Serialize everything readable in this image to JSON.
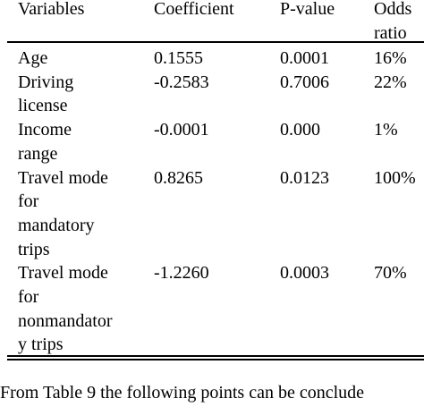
{
  "table": {
    "header": [
      [
        "Variables"
      ],
      [
        "Coefficient"
      ],
      [
        "P-value"
      ],
      [
        "Odds",
        "ratio"
      ]
    ],
    "rows": [
      [
        [
          "Age"
        ],
        "0.1555",
        "0.0001",
        "16%"
      ],
      [
        [
          "Driving",
          "license"
        ],
        "-0.2583",
        "0.7006",
        "22%"
      ],
      [
        [
          "Income",
          "range"
        ],
        "-0.0001",
        "0.000",
        "1%"
      ],
      [
        [
          "Travel mode",
          "for",
          "mandatory",
          "trips"
        ],
        "0.8265",
        "0.0123",
        "100%"
      ],
      [
        [
          "Travel mode",
          "for",
          "nonmandator",
          "y trips"
        ],
        "-1.2260",
        "0.0003",
        "70%"
      ]
    ]
  },
  "footer": {
    "text": "From Table 9 the following points can be conclude"
  }
}
